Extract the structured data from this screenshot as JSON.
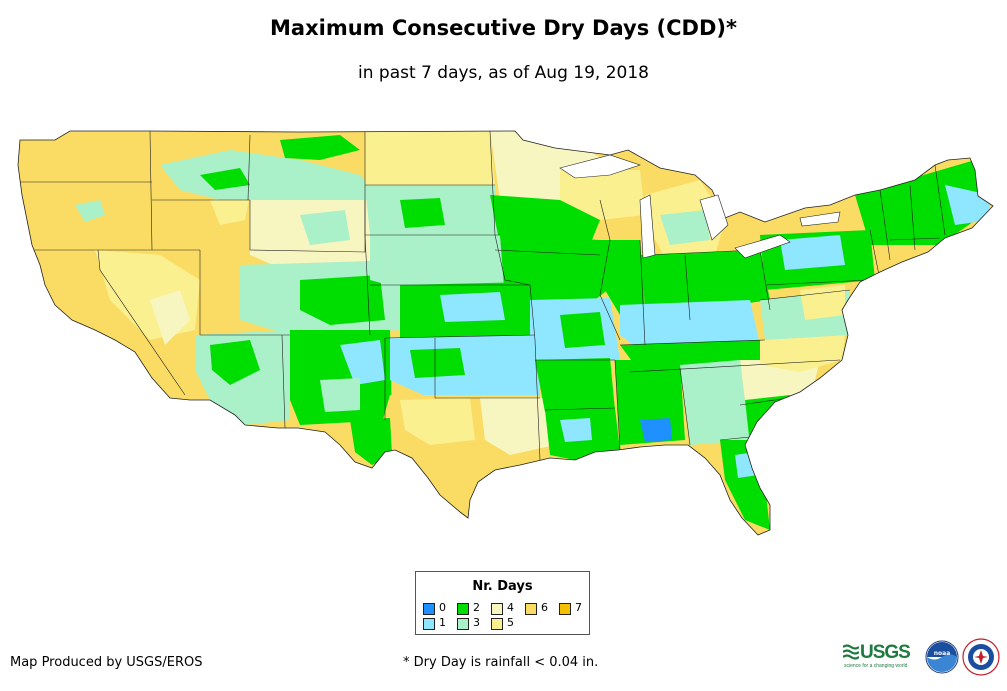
{
  "title": "Maximum Consecutive Dry Days (CDD)*",
  "subtitle": "in past 7 days, as of Aug 19, 2018",
  "legend": {
    "title": "Nr. Days",
    "items": [
      {
        "label": "0",
        "color": "#1e90ff"
      },
      {
        "label": "1",
        "color": "#8ee6ff"
      },
      {
        "label": "2",
        "color": "#00dd00"
      },
      {
        "label": "3",
        "color": "#aaf0c8"
      },
      {
        "label": "4",
        "color": "#f8f6c0"
      },
      {
        "label": "5",
        "color": "#faf090"
      },
      {
        "label": "6",
        "color": "#fadc64"
      },
      {
        "label": "7",
        "color": "#f5c000"
      }
    ]
  },
  "credit": "Map Produced by USGS/EROS",
  "footnote": "* Dry Day is rainfall < 0.04 in.",
  "logos": {
    "usgs_text": "USGS",
    "usgs_tagline": "science for a changing world",
    "noaa_text": "noaa"
  }
}
